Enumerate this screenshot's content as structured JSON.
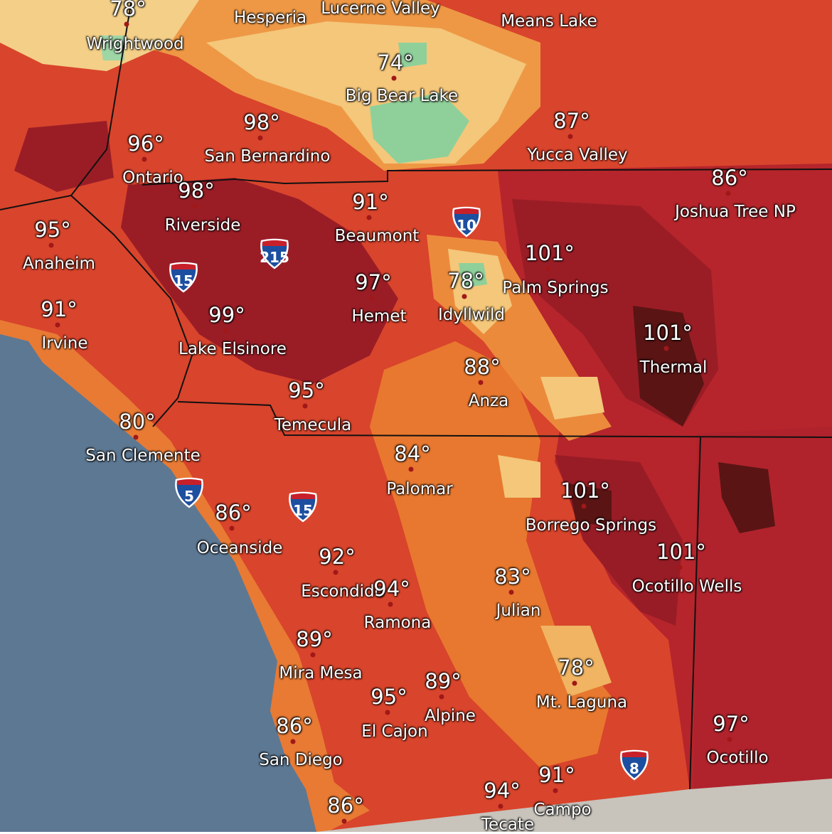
{
  "cities": [
    {
      "name": "Wrightwood",
      "temp": "78°"
    },
    {
      "name": "Hesperia"
    },
    {
      "name": "Lucerne Valley"
    },
    {
      "name": "Means Lake"
    },
    {
      "name": "Big Bear Lake",
      "temp": "74°"
    },
    {
      "name": "San Bernardino",
      "temp": "98°"
    },
    {
      "name": "Ontario",
      "temp": "96°"
    },
    {
      "name": "Riverside",
      "temp": "98°"
    },
    {
      "name": "Yucca Valley",
      "temp": "87°"
    },
    {
      "name": "Joshua Tree NP",
      "temp": "86°"
    },
    {
      "name": "Anaheim",
      "temp": "95°"
    },
    {
      "name": "Beaumont",
      "temp": "91°"
    },
    {
      "name": "Palm Springs",
      "temp": "101°"
    },
    {
      "name": "Hemet",
      "temp": "97°"
    },
    {
      "name": "Idyllwild",
      "temp": "78°"
    },
    {
      "name": "Irvine",
      "temp": "91°"
    },
    {
      "name": "Lake Elsinore",
      "temp": "99°"
    },
    {
      "name": "Thermal",
      "temp": "101°"
    },
    {
      "name": "Anza",
      "temp": "88°"
    },
    {
      "name": "Temecula",
      "temp": "95°"
    },
    {
      "name": "San Clemente",
      "temp": "80°"
    },
    {
      "name": "Palomar",
      "temp": "84°"
    },
    {
      "name": "Borrego Springs",
      "temp": "101°"
    },
    {
      "name": "Oceanside",
      "temp": "86°"
    },
    {
      "name": "Ocotillo Wells",
      "temp": "101°"
    },
    {
      "name": "Escondido",
      "temp": "92°"
    },
    {
      "name": "Ramona",
      "temp": "94°"
    },
    {
      "name": "Julian",
      "temp": "83°"
    },
    {
      "name": "Mira Mesa",
      "temp": "89°"
    },
    {
      "name": "Mt. Laguna",
      "temp": "78°"
    },
    {
      "name": "Alpine",
      "temp": "89°"
    },
    {
      "name": "El Cajon",
      "temp": "95°"
    },
    {
      "name": "Ocotillo",
      "temp": "97°"
    },
    {
      "name": "San Diego",
      "temp": "86°"
    },
    {
      "name": "Campo",
      "temp": "91°"
    },
    {
      "name": "Tecate",
      "temp": "94°"
    },
    {
      "temp": "86°"
    }
  ],
  "highways": [
    "15",
    "215",
    "10",
    "5",
    "15",
    "8"
  ]
}
